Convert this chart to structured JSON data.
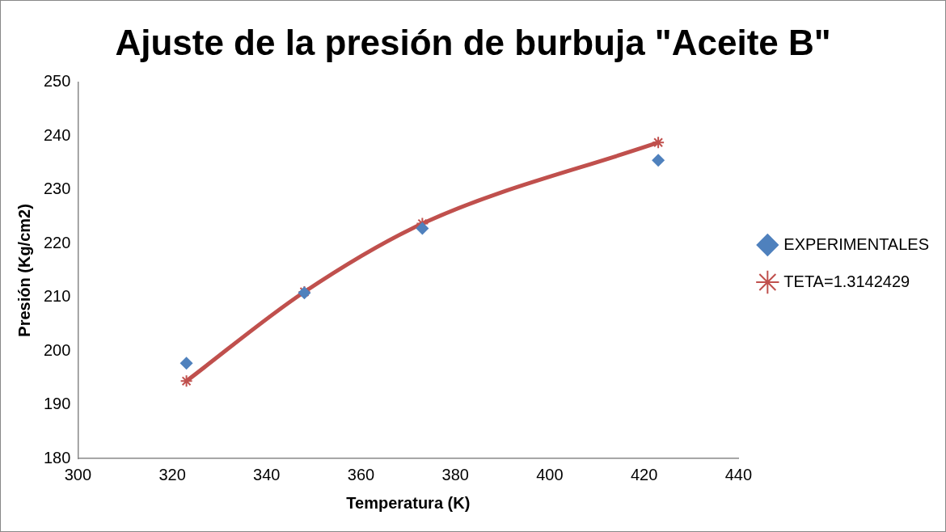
{
  "chart_data": {
    "type": "scatter",
    "title": "Ajuste de la presión de burbuja \"Aceite B\"",
    "xlabel": "Temperatura (K)",
    "ylabel": "Presión (Kg/cm2)",
    "x": [
      323,
      348,
      373,
      423
    ],
    "series": [
      {
        "name": "EXPERIMENTALES",
        "type": "scatter",
        "color": "#4f81bd",
        "marker": "diamond",
        "values": [
          197.7,
          210.8,
          222.8,
          235.5
        ]
      },
      {
        "name": "TETA=1.3142429",
        "type": "line",
        "color": "#c0504d",
        "marker": "cross",
        "line_style": "solid",
        "values": [
          194.4,
          211,
          223.7,
          238.8
        ]
      }
    ],
    "xlim": [
      300,
      440
    ],
    "xticks": [
      300,
      320,
      340,
      360,
      380,
      400,
      420,
      440
    ],
    "ylim": [
      180,
      250
    ],
    "yticks": [
      180,
      190,
      200,
      210,
      220,
      230,
      240,
      250
    ],
    "grid": false,
    "legend": "right"
  }
}
